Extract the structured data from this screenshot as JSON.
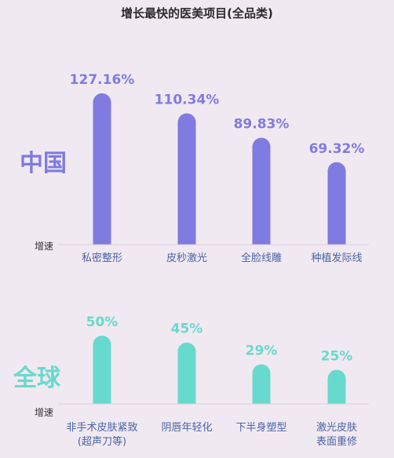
{
  "title": "增长最快的医美项目(全品类)",
  "colors": {
    "china": "#7f7be0",
    "global": "#68d9cd",
    "category_text": "#4a63a8"
  },
  "chart_data": [
    {
      "type": "bar",
      "region_label": "中国",
      "ylabel": "增速",
      "categories": [
        [
          "私密整形"
        ],
        [
          "皮秒激光"
        ],
        [
          "全脸线雕"
        ],
        [
          "种植发际线"
        ]
      ],
      "values": [
        127.16,
        110.34,
        89.83,
        69.32
      ],
      "value_labels": [
        "127.16%",
        "110.34%",
        "89.83%",
        "69.32%"
      ],
      "ylim": [
        0,
        127.16
      ]
    },
    {
      "type": "bar",
      "region_label": "全球",
      "ylabel": "增速",
      "categories": [
        [
          "非手术皮肤紧致",
          "(超声刀等)"
        ],
        [
          "阴唇年轻化"
        ],
        [
          "下半身塑型"
        ],
        [
          "激光皮肤",
          "表面重修"
        ]
      ],
      "values": [
        50,
        45,
        29,
        25
      ],
      "value_labels": [
        "50%",
        "45%",
        "29%",
        "25%"
      ],
      "ylim": [
        0,
        50
      ]
    }
  ]
}
